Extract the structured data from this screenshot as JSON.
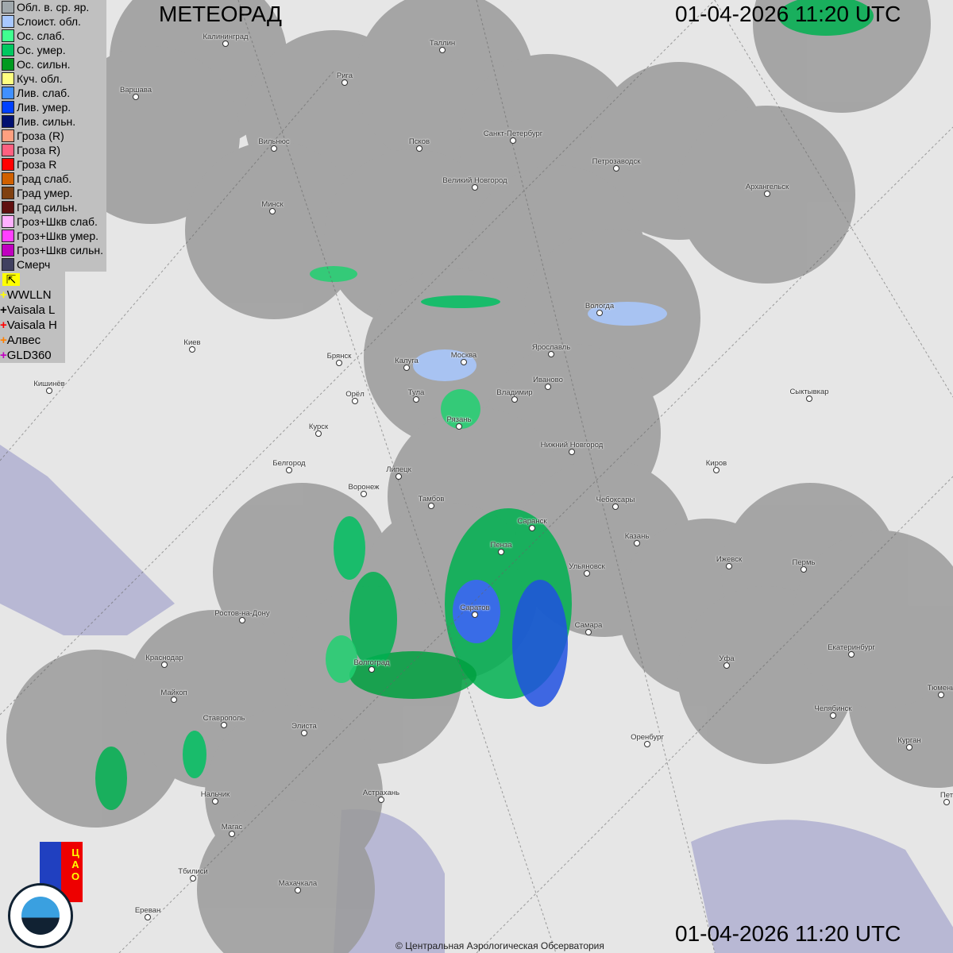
{
  "header": {
    "title": "МЕТЕОРАД",
    "datetime_top": "01-04-2026  11:20 UTC",
    "datetime_bottom": "01-04-2026  11:20 UTC"
  },
  "legend": [
    {
      "label": "Обл. в. ср. яр.",
      "color": "#a0a8ac"
    },
    {
      "label": "Слоист. обл.",
      "color": "#a8c8ff"
    },
    {
      "label": "Ос. слаб.",
      "color": "#40ff90"
    },
    {
      "label": "Ос. умер.",
      "color": "#00c860"
    },
    {
      "label": "Ос. сильн.",
      "color": "#009a20"
    },
    {
      "label": "Куч. обл.",
      "color": "#ffff80"
    },
    {
      "label": "Лив. слаб.",
      "color": "#4090ff"
    },
    {
      "label": "Лив. умер.",
      "color": "#0040ff"
    },
    {
      "label": "Лив. сильн.",
      "color": "#001070"
    },
    {
      "label": "Гроза (R)",
      "color": "#ffa080"
    },
    {
      "label": "Гроза R)",
      "color": "#ff6080"
    },
    {
      "label": "Гроза R",
      "color": "#ff0000"
    },
    {
      "label": "Град слаб.",
      "color": "#d06000"
    },
    {
      "label": "Град умер.",
      "color": "#804010"
    },
    {
      "label": "Град сильн.",
      "color": "#601010"
    },
    {
      "label": "Гроз+Шкв слаб.",
      "color": "#ffb0ff"
    },
    {
      "label": "Гроз+Шкв умер.",
      "color": "#ff40ff"
    },
    {
      "label": "Гроз+Шкв сильн.",
      "color": "#c000c0"
    },
    {
      "label": "Смерч",
      "color": "#404060"
    }
  ],
  "lightning_legend": [
    {
      "label": "WWLLN",
      "color": "#ffff00"
    },
    {
      "label": "Vaisala L",
      "color": "#000000"
    },
    {
      "label": "Vaisala H",
      "color": "#ff0000"
    },
    {
      "label": "Алвес",
      "color": "#ff8000"
    },
    {
      "label": "GLD360",
      "color": "#c000c0"
    }
  ],
  "cities": [
    "Калининград",
    "Таллин",
    "Рига",
    "Варшава",
    "Вильнюс",
    "Псков",
    "Санкт-Петербург",
    "Петрозаводск",
    "Великий Новгород",
    "Архангельск",
    "Минск",
    "Киев",
    "Вологда",
    "Ярославль",
    "Брянск",
    "Калуга",
    "Москва",
    "Иваново",
    "Кишинёв",
    "Тула",
    "Владимир",
    "Орёл",
    "Сыктывкар",
    "Рязань",
    "Курск",
    "Нижний Новгород",
    "Белгород",
    "Киров",
    "Липецк",
    "Воронеж",
    "Тамбов",
    "Чебоксары",
    "Саранск",
    "Казань",
    "Пенза",
    "Ижевск",
    "Пермь",
    "Ульяновск",
    "Саратов",
    "Ростов-на-Дону",
    "Самара",
    "Краснодар",
    "Уфа",
    "Волгоград",
    "Екатеринбург",
    "Тюмень",
    "Майкоп",
    "Челябинск",
    "Ставрополь",
    "Элиста",
    "Оренбург",
    "Курган",
    "Астрахань",
    "Нальчик",
    "Магас",
    "Тбилиси",
    "Махачкала",
    "Ереван",
    "Пет"
  ],
  "logos": {
    "cao": "ЦАО 1941",
    "roshydromet": "РОСГИДРОМЕТ ROSHYDROMET"
  },
  "copyright": "© Центральная Аэрологическая Обсерватория"
}
